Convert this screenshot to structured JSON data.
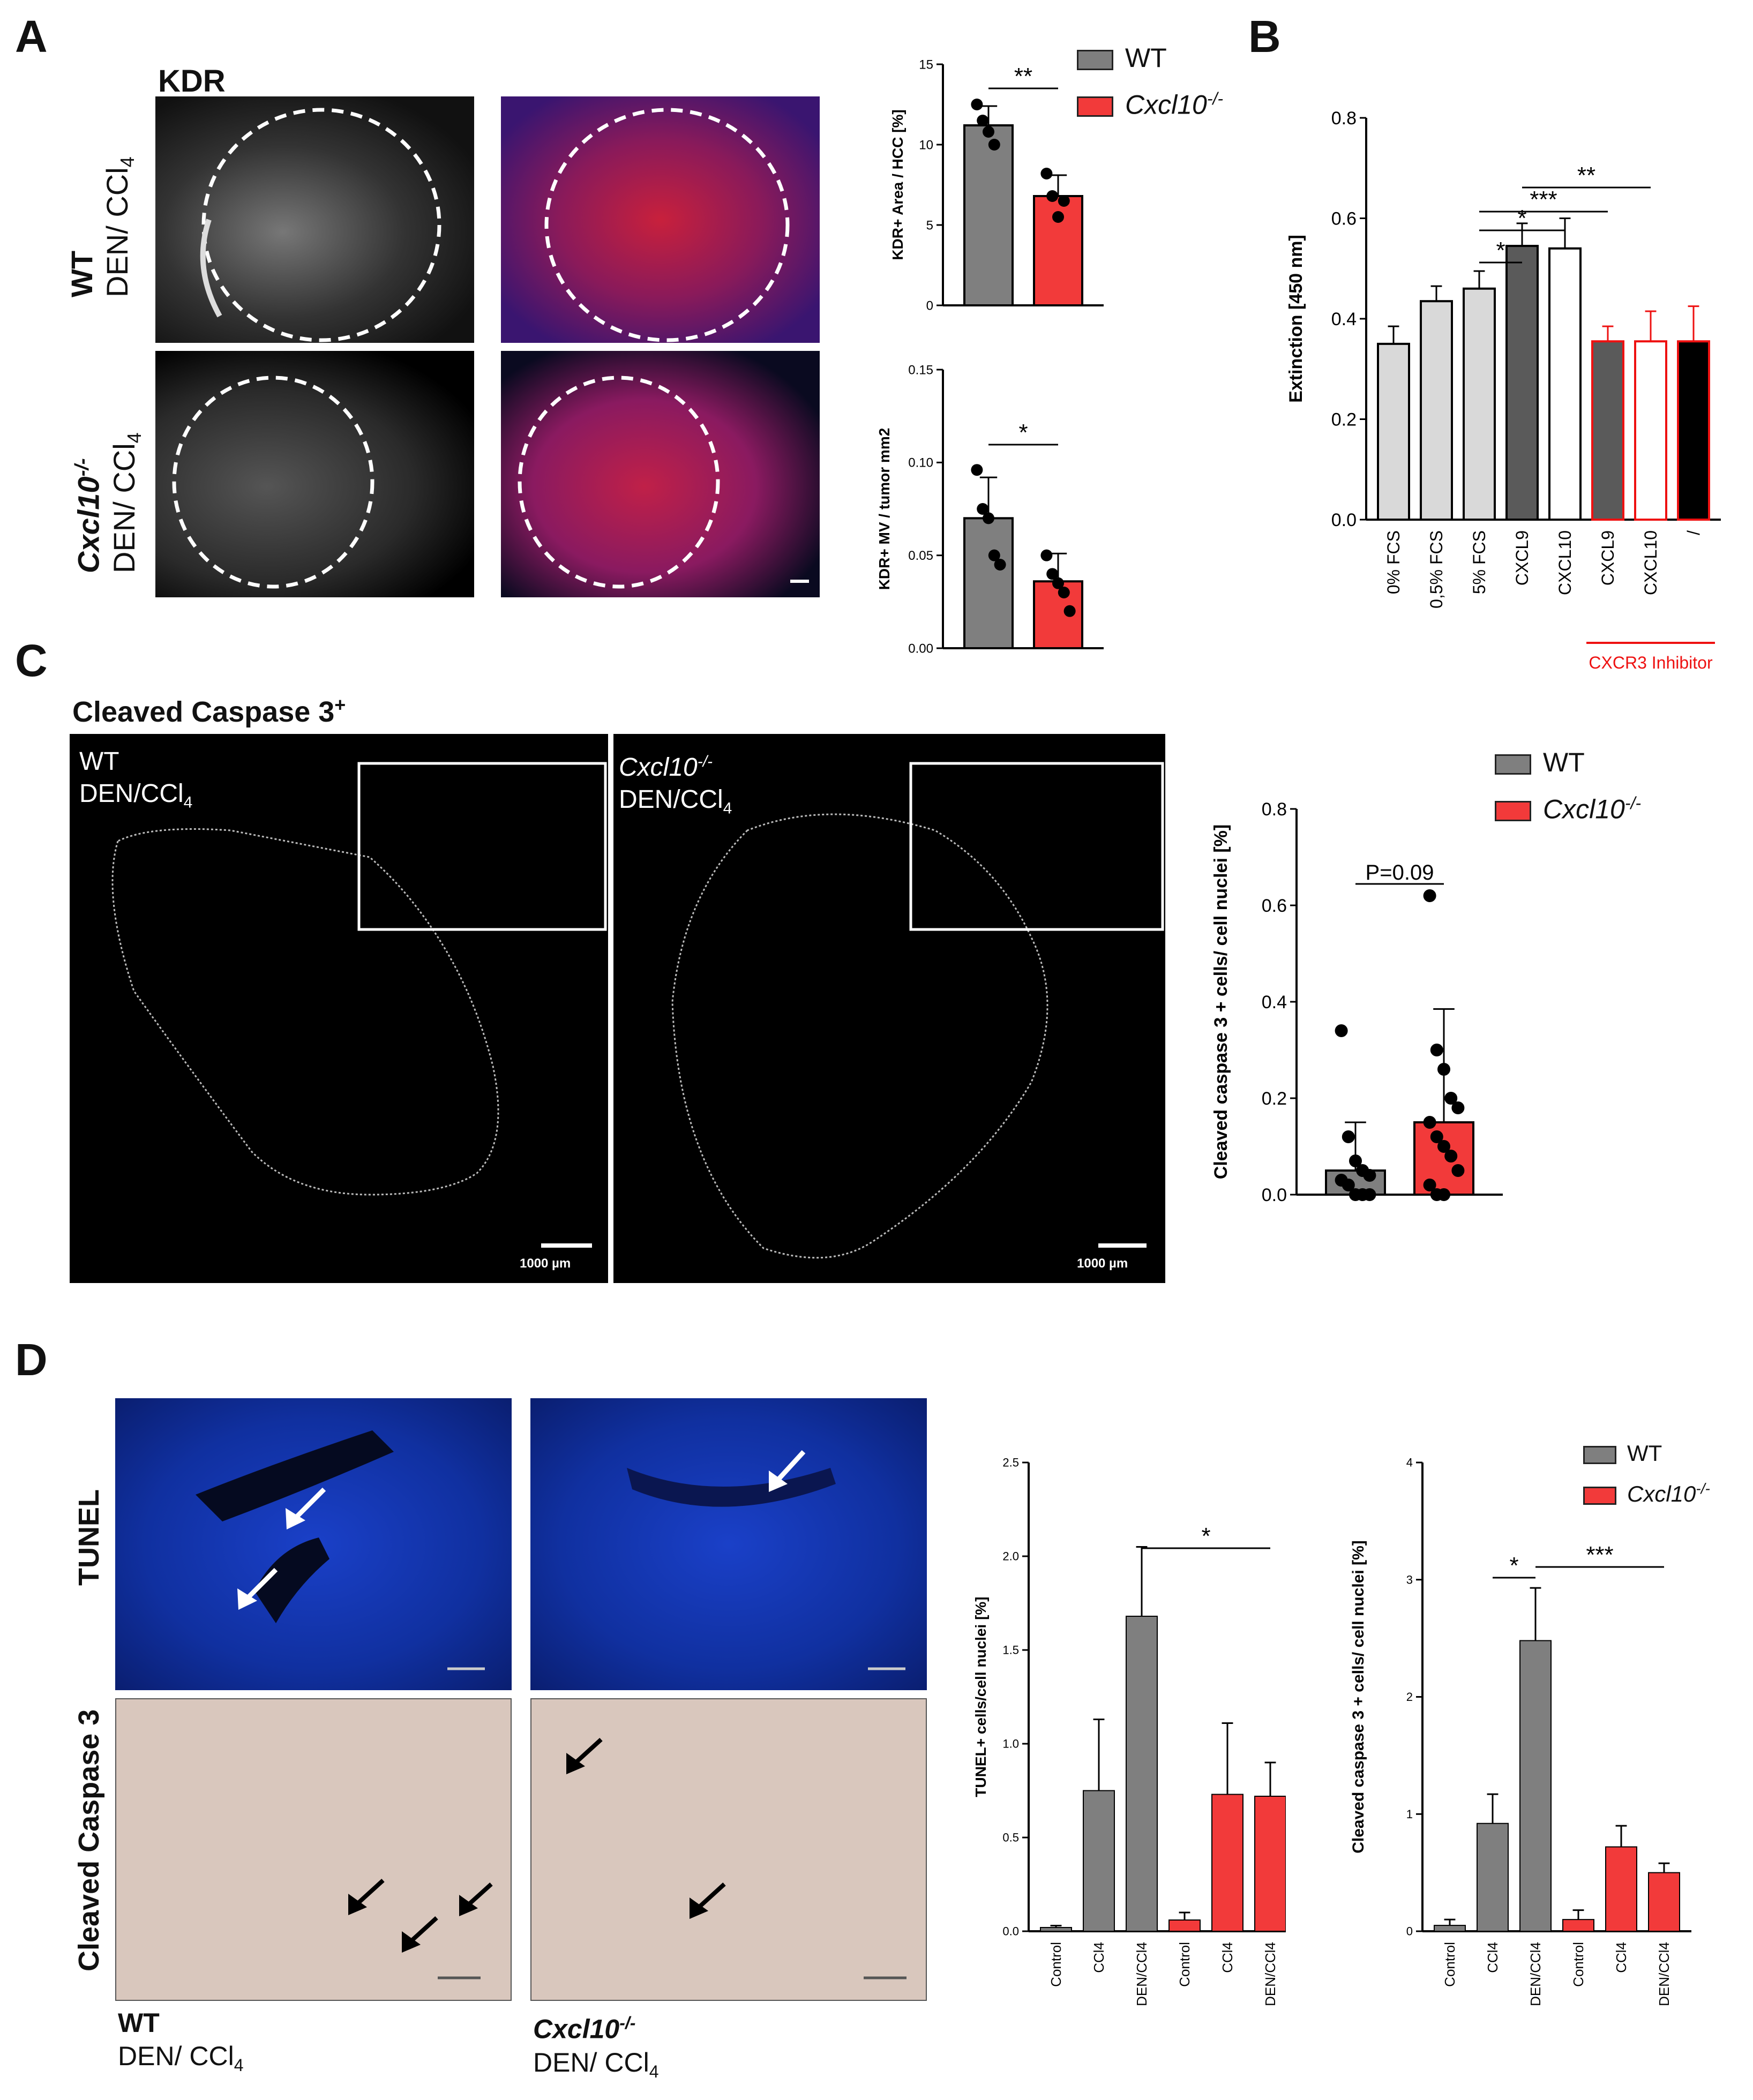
{
  "panels": {
    "a": "A",
    "b": "B",
    "c": "C",
    "d": "D"
  },
  "colors": {
    "wt": "#7f7f7f",
    "ko": "#f23a3a",
    "inhibitor_red": "#ee1111"
  },
  "panelA": {
    "stain_title": "KDR",
    "row1_genotype": "WT",
    "row1_treatment": "DEN/ CCl",
    "row1_sub": "4",
    "row2_genotype": "Cxcl10",
    "row2_sup": "-/-",
    "row2_treatment": "DEN/ CCl",
    "row2_sub": "4",
    "legend": {
      "wt": "WT",
      "ko": "Cxcl10",
      "ko_sup": "-/-"
    }
  },
  "panelC": {
    "title": "Cleaved Caspase 3",
    "title_sup": "+",
    "left_genotype": "WT",
    "left_treatment": "DEN/CCl",
    "left_sub": "4",
    "right_genotype": "Cxcl10",
    "right_sup": "-/-",
    "right_treatment": "DEN/CCl",
    "right_sub": "4",
    "scale_bar": "1000 µm",
    "legend": {
      "wt": "WT",
      "ko": "Cxcl10",
      "ko_sup": "-/-"
    }
  },
  "panelD": {
    "row1_label": "TUNEL",
    "row2_label": "Cleaved Caspase 3",
    "left_genotype": "WT",
    "left_treatment": "DEN/ CCl",
    "left_sub": "4",
    "right_genotype": "Cxcl10",
    "right_sup": "-/-",
    "right_treatment": "DEN/ CCl",
    "right_sub": "4",
    "legend": {
      "wt": "WT",
      "ko": "Cxcl10",
      "ko_sup": "-/-"
    }
  },
  "chart_data": [
    {
      "id": "A-top",
      "type": "bar",
      "ylabel": "KDR+ Area / HCC [%]",
      "ylim": [
        0,
        15
      ],
      "yticks": [
        0,
        5,
        10,
        15
      ],
      "categories": [
        "WT",
        "Cxcl10-/-"
      ],
      "values": [
        11.2,
        6.8
      ],
      "errors": [
        1.2,
        1.3
      ],
      "points": [
        [
          12.5,
          11.5,
          10.8,
          10.0
        ],
        [
          8.2,
          6.8,
          5.5,
          6.5
        ]
      ],
      "colors": [
        "#7f7f7f",
        "#f23a3a"
      ],
      "significance": [
        {
          "from": 0,
          "to": 1,
          "label": "**"
        }
      ]
    },
    {
      "id": "A-bottom",
      "type": "bar",
      "ylabel": "KDR+ MV / tumor mm2",
      "ylim": [
        0,
        0.15
      ],
      "yticks": [
        0.0,
        0.05,
        0.1,
        0.15
      ],
      "categories": [
        "WT",
        "Cxcl10-/-"
      ],
      "values": [
        0.07,
        0.036
      ],
      "errors": [
        0.022,
        0.015
      ],
      "points": [
        [
          0.096,
          0.075,
          0.07,
          0.05,
          0.045
        ],
        [
          0.05,
          0.04,
          0.035,
          0.03,
          0.02
        ]
      ],
      "colors": [
        "#7f7f7f",
        "#f23a3a"
      ],
      "significance": [
        {
          "from": 0,
          "to": 1,
          "label": "*"
        }
      ]
    },
    {
      "id": "B",
      "type": "bar",
      "ylabel": "Extinction [450 nm]",
      "ylim": [
        0,
        0.8
      ],
      "yticks": [
        0.0,
        0.2,
        0.4,
        0.6,
        0.8
      ],
      "categories": [
        "0% FCS",
        "0,5% FCS",
        "5% FCS",
        "CXCL9",
        "CXCL10",
        "CXCL9",
        "CXCL10",
        "/"
      ],
      "values": [
        0.35,
        0.435,
        0.46,
        0.545,
        0.54,
        0.355,
        0.355,
        0.355
      ],
      "errors": [
        0.035,
        0.03,
        0.035,
        0.045,
        0.06,
        0.03,
        0.06,
        0.07
      ],
      "group_label": "CXCR3 Inhibitor",
      "significance": [
        {
          "from": 2,
          "to": 3,
          "label": "*"
        },
        {
          "from": 2,
          "to": 4,
          "label": "*"
        },
        {
          "from": 2,
          "to": 5,
          "label": "***"
        },
        {
          "from": 3,
          "to": 6,
          "label": "**"
        }
      ]
    },
    {
      "id": "C",
      "type": "bar",
      "ylabel": "Cleaved caspase 3 + cells/ cell nuclei [%]",
      "ylim": [
        0,
        0.8
      ],
      "yticks": [
        0.0,
        0.2,
        0.4,
        0.6,
        0.8
      ],
      "categories": [
        "WT",
        "Cxcl10-/-"
      ],
      "values": [
        0.05,
        0.15
      ],
      "errors": [
        0.1,
        0.235
      ],
      "points": [
        [
          0.34,
          0.12,
          0.07,
          0.05,
          0.04,
          0.03,
          0.02,
          0.0,
          0.0,
          0.0
        ],
        [
          0.62,
          0.3,
          0.26,
          0.2,
          0.18,
          0.15,
          0.12,
          0.1,
          0.08,
          0.05,
          0.02,
          0.0,
          0.0
        ]
      ],
      "colors": [
        "#7f7f7f",
        "#f23a3a"
      ],
      "significance": [
        {
          "from": 0,
          "to": 1,
          "label": "P=0.09"
        }
      ]
    },
    {
      "id": "D-TUNEL",
      "type": "bar",
      "ylabel": "TUNEL+ cells/cell nuclei [%]",
      "ylim": [
        0,
        2.5
      ],
      "yticks": [
        0.0,
        0.5,
        1.0,
        1.5,
        2.0,
        2.5
      ],
      "categories": [
        "Control",
        "CCl4",
        "DEN/CCl4",
        "Control",
        "CCl4",
        "DEN/CCl4"
      ],
      "values": [
        0.02,
        0.75,
        1.68,
        0.06,
        0.73,
        0.72
      ],
      "errors": [
        0.01,
        0.38,
        0.37,
        0.04,
        0.38,
        0.18
      ],
      "colors": [
        "#7f7f7f",
        "#7f7f7f",
        "#7f7f7f",
        "#f23a3a",
        "#f23a3a",
        "#f23a3a"
      ],
      "significance": [
        {
          "from": 2,
          "to": 5,
          "label": "*"
        }
      ]
    },
    {
      "id": "D-Caspase",
      "type": "bar",
      "ylabel": "Cleaved caspase 3 + cells/ cell nuclei [%]",
      "ylim": [
        0,
        4
      ],
      "yticks": [
        0,
        1,
        2,
        3,
        4
      ],
      "categories": [
        "Control",
        "CCl4",
        "DEN/CCl4",
        "Control",
        "CCl4",
        "DEN/CCl4"
      ],
      "values": [
        0.05,
        0.92,
        2.48,
        0.1,
        0.72,
        0.5
      ],
      "errors": [
        0.05,
        0.25,
        0.45,
        0.08,
        0.18,
        0.08
      ],
      "colors": [
        "#7f7f7f",
        "#7f7f7f",
        "#7f7f7f",
        "#f23a3a",
        "#f23a3a",
        "#f23a3a"
      ],
      "significance": [
        {
          "from": 1,
          "to": 2,
          "label": "*"
        },
        {
          "from": 2,
          "to": 5,
          "label": "***"
        }
      ]
    }
  ]
}
